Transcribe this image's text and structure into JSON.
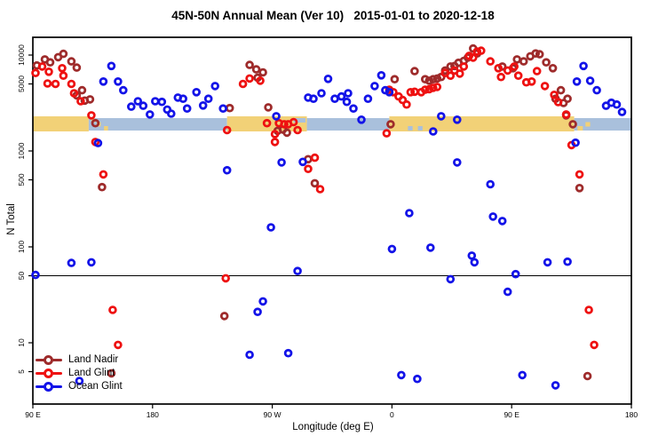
{
  "title": "45N-50N Annual Mean (Ver 10)   2015-01-01 to 2020-12-18",
  "chart_data": {
    "type": "scatter",
    "title": "45N-50N Annual Mean (Ver 10)   2015-01-01 to 2020-12-18",
    "xlabel": "Longitude (deg E)",
    "ylabel": "N Total",
    "x_axis": {
      "min": 90,
      "max": 540,
      "ticks": [
        {
          "v": 90,
          "label": "90 E"
        },
        {
          "v": 180,
          "label": "180"
        },
        {
          "v": 270,
          "label": "90 W"
        },
        {
          "v": 360,
          "label": "0"
        },
        {
          "v": 450,
          "label": "90 E"
        },
        {
          "v": 540,
          "label": "180"
        }
      ]
    },
    "y_axis": {
      "scale": "log",
      "min": 2.7,
      "max": 14000,
      "ticks": [
        {
          "v": 10000,
          "label": "10000"
        },
        {
          "v": 5000,
          "label": "5000"
        },
        {
          "v": 1000,
          "label": "1000"
        },
        {
          "v": 500,
          "label": "500"
        },
        {
          "v": 100,
          "label": "100"
        },
        {
          "v": 50,
          "label": "50"
        },
        {
          "v": 10,
          "label": "10"
        },
        {
          "v": 5,
          "label": "5"
        }
      ]
    },
    "reference_line_y": 50,
    "land_ocean_band": {
      "meaning": "land/ocean strip along the 45N-50N latitude band",
      "land_color": "#F2D177",
      "ocean_color": "#A9C0DC",
      "segments": [
        {
          "type": "land",
          "from": 90,
          "to": 132
        },
        {
          "type": "ocean",
          "from": 132,
          "to": 236
        },
        {
          "type": "land",
          "from": 236,
          "to": 296
        },
        {
          "type": "ocean",
          "from": 296,
          "to": 358
        },
        {
          "type": "land",
          "from": 358,
          "to": 497
        },
        {
          "type": "ocean",
          "from": 497,
          "to": 540
        }
      ],
      "islands": [
        {
          "from": 134,
          "to": 136.5,
          "pos": "top"
        },
        {
          "from": 138,
          "to": 141,
          "pos": "mid"
        },
        {
          "from": 143.5,
          "to": 146.5,
          "pos": "bottom"
        },
        {
          "from": 499.5,
          "to": 503.5,
          "pos": "bottom"
        },
        {
          "from": 505.5,
          "to": 509,
          "pos": "mid"
        }
      ],
      "inland_water": [
        {
          "from": 286,
          "to": 295,
          "pos": "top"
        },
        {
          "from": 372,
          "to": 375.5,
          "pos": "bottom"
        },
        {
          "from": 379.5,
          "to": 383,
          "pos": "bottom"
        }
      ]
    },
    "legend_position": "bottom-left",
    "series": [
      {
        "name": "Land Nadir",
        "color": "#9E2B2B",
        "points": [
          [
            93,
            7800
          ],
          [
            99,
            9000
          ],
          [
            103,
            8400
          ],
          [
            109,
            9500
          ],
          [
            113,
            10300
          ],
          [
            119,
            8600
          ],
          [
            123,
            7400
          ],
          [
            127,
            4300
          ],
          [
            123,
            3800
          ],
          [
            129,
            3350
          ],
          [
            133,
            3450
          ],
          [
            137,
            1950
          ],
          [
            142,
            420
          ],
          [
            149,
            4.8
          ],
          [
            238,
            2800
          ],
          [
            253,
            7900
          ],
          [
            258,
            7100
          ],
          [
            263,
            6600
          ],
          [
            259,
            5800
          ],
          [
            267,
            2850
          ],
          [
            274,
            1620
          ],
          [
            278,
            1670
          ],
          [
            281,
            1550
          ],
          [
            297,
            820
          ],
          [
            302,
            460
          ],
          [
            234,
            19
          ],
          [
            362,
            5600
          ],
          [
            377,
            6800
          ],
          [
            385,
            5600
          ],
          [
            388,
            5400
          ],
          [
            391,
            5600
          ],
          [
            394,
            5700
          ],
          [
            397,
            5900
          ],
          [
            400,
            6900
          ],
          [
            404,
            7600
          ],
          [
            407,
            7700
          ],
          [
            410,
            8300
          ],
          [
            414,
            8700
          ],
          [
            417,
            9400
          ],
          [
            421,
            11700
          ],
          [
            424,
            10400
          ],
          [
            359,
            1900
          ],
          [
            443,
            7600
          ],
          [
            451,
            7300
          ],
          [
            454,
            9000
          ],
          [
            459,
            8600
          ],
          [
            464,
            9700
          ],
          [
            468,
            10400
          ],
          [
            471,
            10200
          ],
          [
            476,
            8400
          ],
          [
            481,
            7300
          ],
          [
            487,
            4300
          ],
          [
            483,
            3500
          ],
          [
            489,
            3160
          ],
          [
            492,
            3500
          ],
          [
            491,
            2350
          ],
          [
            496,
            1900
          ],
          [
            501,
            410
          ],
          [
            507,
            4.5
          ]
        ]
      },
      {
        "name": "Land Glint",
        "color": "#EE1111",
        "points": [
          [
            92,
            6500
          ],
          [
            97,
            7600
          ],
          [
            102,
            6700
          ],
          [
            101,
            5050
          ],
          [
            107,
            5000
          ],
          [
            112,
            7300
          ],
          [
            113,
            6100
          ],
          [
            119,
            5000
          ],
          [
            121,
            4000
          ],
          [
            126,
            3300
          ],
          [
            134,
            2350
          ],
          [
            137,
            1240
          ],
          [
            143,
            570
          ],
          [
            150,
            22
          ],
          [
            154,
            9.5
          ],
          [
            236,
            1650
          ],
          [
            248,
            5000
          ],
          [
            253,
            5700
          ],
          [
            261,
            5400
          ],
          [
            266,
            1950
          ],
          [
            272,
            1500
          ],
          [
            275,
            1950
          ],
          [
            279,
            1900
          ],
          [
            282,
            1900
          ],
          [
            286,
            2000
          ],
          [
            289,
            1650
          ],
          [
            272,
            1240
          ],
          [
            302,
            850
          ],
          [
            297,
            650
          ],
          [
            306,
            400
          ],
          [
            235,
            47
          ],
          [
            358,
            4350
          ],
          [
            361,
            4100
          ],
          [
            365,
            3700
          ],
          [
            368,
            3400
          ],
          [
            371,
            3050
          ],
          [
            374,
            4100
          ],
          [
            377,
            4150
          ],
          [
            382,
            4100
          ],
          [
            385,
            4350
          ],
          [
            388,
            4400
          ],
          [
            391,
            4550
          ],
          [
            394,
            4650
          ],
          [
            400,
            6500
          ],
          [
            404,
            6100
          ],
          [
            407,
            6900
          ],
          [
            411,
            6400
          ],
          [
            414,
            7600
          ],
          [
            418,
            9800
          ],
          [
            421,
            9400
          ],
          [
            424,
            10900
          ],
          [
            427,
            11100
          ],
          [
            434,
            8600
          ],
          [
            440,
            7300
          ],
          [
            356,
            1530
          ],
          [
            442,
            5900
          ],
          [
            447,
            6900
          ],
          [
            452,
            7600
          ],
          [
            455,
            6100
          ],
          [
            461,
            5200
          ],
          [
            465,
            5300
          ],
          [
            469,
            6800
          ],
          [
            475,
            4750
          ],
          [
            482,
            3850
          ],
          [
            485,
            3230
          ],
          [
            491,
            2400
          ],
          [
            495,
            1150
          ],
          [
            501,
            570
          ],
          [
            508,
            22
          ],
          [
            512,
            9.5
          ]
        ]
      },
      {
        "name": "Ocean Glint",
        "color": "#1313E8",
        "points": [
          [
            149,
            7700
          ],
          [
            143,
            5300
          ],
          [
            154,
            5300
          ],
          [
            158,
            4300
          ],
          [
            164,
            2900
          ],
          [
            169,
            3300
          ],
          [
            173,
            2960
          ],
          [
            178,
            2400
          ],
          [
            182,
            3300
          ],
          [
            187,
            3250
          ],
          [
            191,
            2700
          ],
          [
            194,
            2450
          ],
          [
            199,
            3600
          ],
          [
            203,
            3500
          ],
          [
            206,
            2770
          ],
          [
            213,
            4100
          ],
          [
            218,
            2980
          ],
          [
            222,
            3500
          ],
          [
            227,
            4750
          ],
          [
            233,
            2770
          ],
          [
            139,
            1210
          ],
          [
            119,
            68
          ],
          [
            134,
            69
          ],
          [
            92,
            51
          ],
          [
            125,
            4
          ],
          [
            273,
            2300
          ],
          [
            297,
            3600
          ],
          [
            301,
            3500
          ],
          [
            307,
            4000
          ],
          [
            312,
            5650
          ],
          [
            317,
            3500
          ],
          [
            322,
            3700
          ],
          [
            326,
            3250
          ],
          [
            236,
            630
          ],
          [
            277,
            760
          ],
          [
            293,
            770
          ],
          [
            269,
            160
          ],
          [
            289,
            56
          ],
          [
            259,
            21
          ],
          [
            263,
            27
          ],
          [
            253,
            7.5
          ],
          [
            282,
            7.8
          ],
          [
            327,
            4000
          ],
          [
            331,
            2770
          ],
          [
            337,
            2120
          ],
          [
            342,
            3500
          ],
          [
            347,
            4750
          ],
          [
            352,
            6150
          ],
          [
            355,
            4300
          ],
          [
            358,
            4100
          ],
          [
            397,
            2300
          ],
          [
            409,
            2120
          ],
          [
            391,
            1600
          ],
          [
            409,
            760
          ],
          [
            434,
            450
          ],
          [
            373,
            225
          ],
          [
            436,
            207
          ],
          [
            443,
            186
          ],
          [
            360,
            95
          ],
          [
            389,
            98
          ],
          [
            420,
            81
          ],
          [
            422,
            69
          ],
          [
            477,
            69
          ],
          [
            492,
            70
          ],
          [
            453,
            52
          ],
          [
            404,
            46
          ],
          [
            447,
            34
          ],
          [
            367,
            4.6
          ],
          [
            379,
            4.2
          ],
          [
            458,
            4.6
          ],
          [
            483,
            3.6
          ],
          [
            498,
            1220
          ],
          [
            504,
            7700
          ],
          [
            499,
            5300
          ],
          [
            509,
            5400
          ],
          [
            514,
            4300
          ],
          [
            521,
            2960
          ],
          [
            525,
            3180
          ],
          [
            529,
            3050
          ],
          [
            533,
            2550
          ]
        ]
      }
    ]
  }
}
